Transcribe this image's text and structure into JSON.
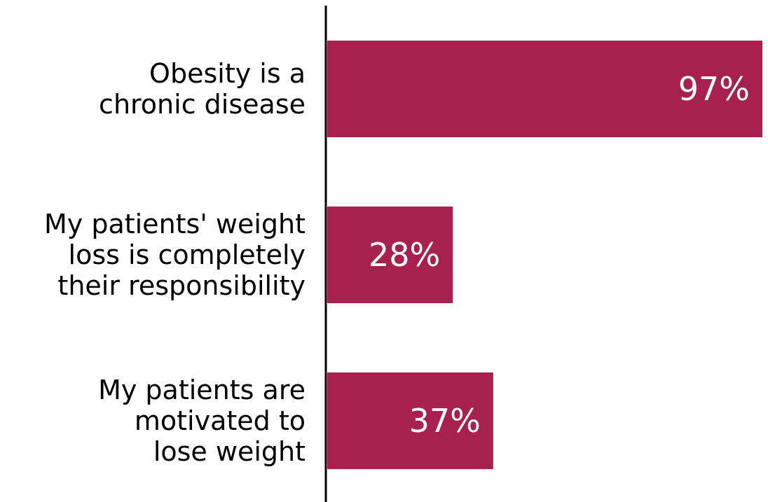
{
  "chart_data": {
    "type": "bar",
    "orientation": "horizontal",
    "categories": [
      [
        "Obesity is a",
        "chronic disease"
      ],
      [
        "My patients' weight",
        "loss is completely",
        "their responsibility"
      ],
      [
        "My patients are",
        "motivated to",
        "lose weight"
      ]
    ],
    "values": [
      97,
      28,
      37
    ],
    "value_labels": [
      "97%",
      "28%",
      "37%"
    ],
    "xlim": [
      0,
      97
    ],
    "bar_color": "#a8204e",
    "axis_color": "#000000",
    "grid": false,
    "legend": "none"
  }
}
